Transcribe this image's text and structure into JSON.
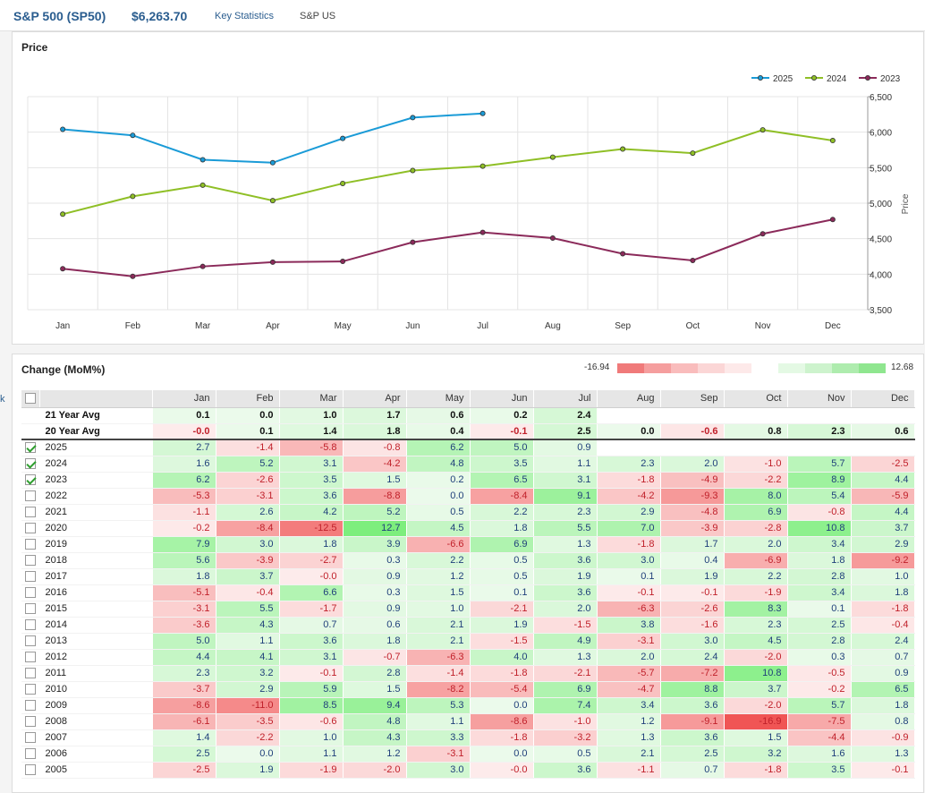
{
  "header": {
    "title": "S&P 500 (SP50)",
    "price": "$6,263.70",
    "tab_key_stats": "Key Statistics",
    "tab_sp_us": "S&P US"
  },
  "left_edge": "k",
  "price_panel": {
    "title": "Price"
  },
  "chart_data": {
    "type": "line",
    "categories": [
      "Jan",
      "Feb",
      "Mar",
      "Apr",
      "May",
      "Jun",
      "Jul",
      "Aug",
      "Sep",
      "Oct",
      "Nov",
      "Dec"
    ],
    "ylabel": "Price",
    "ylim": [
      3500,
      6500
    ],
    "yticks": [
      "3,500",
      "4,000",
      "4,500",
      "5,000",
      "5,500",
      "6,000",
      "6,500"
    ],
    "legend_position": "top-right",
    "series": [
      {
        "name": "2025",
        "color": "#1a9bd7",
        "values": [
          6040,
          5955,
          5612,
          5570,
          5912,
          6205,
          6264,
          null,
          null,
          null,
          null,
          null
        ]
      },
      {
        "name": "2024",
        "color": "#8fbf26",
        "values": [
          4845,
          5096,
          5254,
          5036,
          5278,
          5460,
          5522,
          5648,
          5762,
          5705,
          6032,
          5882
        ]
      },
      {
        "name": "2023",
        "color": "#8b2a5a",
        "values": [
          4077,
          3970,
          4109,
          4169,
          4180,
          4450,
          4589,
          4508,
          4288,
          4194,
          4568,
          4770
        ]
      }
    ]
  },
  "change_panel": {
    "title": "Change (MoM%)",
    "scale_min": "-16.94",
    "scale_max": "12.68",
    "months": [
      "Jan",
      "Feb",
      "Mar",
      "Apr",
      "May",
      "Jun",
      "Jul",
      "Aug",
      "Sep",
      "Oct",
      "Nov",
      "Dec"
    ],
    "avg_rows": [
      {
        "label": "21 Year Avg",
        "values": [
          "0.1",
          "0.0",
          "1.0",
          "1.7",
          "0.6",
          "0.2",
          "2.4",
          "",
          "",
          "",
          "",
          ""
        ]
      },
      {
        "label": "20 Year Avg",
        "values": [
          "-0.0",
          "0.1",
          "1.4",
          "1.8",
          "0.4",
          "-0.1",
          "2.5",
          "0.0",
          "-0.6",
          "0.8",
          "2.3",
          "0.6"
        ]
      }
    ],
    "rows": [
      {
        "year": "2025",
        "checked": true,
        "values": [
          "2.7",
          "-1.4",
          "-5.8",
          "-0.8",
          "6.2",
          "5.0",
          "0.9",
          "",
          "",
          "",
          "",
          ""
        ]
      },
      {
        "year": "2024",
        "checked": true,
        "values": [
          "1.6",
          "5.2",
          "3.1",
          "-4.2",
          "4.8",
          "3.5",
          "1.1",
          "2.3",
          "2.0",
          "-1.0",
          "5.7",
          "-2.5"
        ]
      },
      {
        "year": "2023",
        "checked": true,
        "values": [
          "6.2",
          "-2.6",
          "3.5",
          "1.5",
          "0.2",
          "6.5",
          "3.1",
          "-1.8",
          "-4.9",
          "-2.2",
          "8.9",
          "4.4"
        ]
      },
      {
        "year": "2022",
        "checked": false,
        "values": [
          "-5.3",
          "-3.1",
          "3.6",
          "-8.8",
          "0.0",
          "-8.4",
          "9.1",
          "-4.2",
          "-9.3",
          "8.0",
          "5.4",
          "-5.9"
        ]
      },
      {
        "year": "2021",
        "checked": false,
        "values": [
          "-1.1",
          "2.6",
          "4.2",
          "5.2",
          "0.5",
          "2.2",
          "2.3",
          "2.9",
          "-4.8",
          "6.9",
          "-0.8",
          "4.4"
        ]
      },
      {
        "year": "2020",
        "checked": false,
        "values": [
          "-0.2",
          "-8.4",
          "-12.5",
          "12.7",
          "4.5",
          "1.8",
          "5.5",
          "7.0",
          "-3.9",
          "-2.8",
          "10.8",
          "3.7"
        ]
      },
      {
        "year": "2019",
        "checked": false,
        "values": [
          "7.9",
          "3.0",
          "1.8",
          "3.9",
          "-6.6",
          "6.9",
          "1.3",
          "-1.8",
          "1.7",
          "2.0",
          "3.4",
          "2.9"
        ]
      },
      {
        "year": "2018",
        "checked": false,
        "values": [
          "5.6",
          "-3.9",
          "-2.7",
          "0.3",
          "2.2",
          "0.5",
          "3.6",
          "3.0",
          "0.4",
          "-6.9",
          "1.8",
          "-9.2"
        ]
      },
      {
        "year": "2017",
        "checked": false,
        "values": [
          "1.8",
          "3.7",
          "-0.0",
          "0.9",
          "1.2",
          "0.5",
          "1.9",
          "0.1",
          "1.9",
          "2.2",
          "2.8",
          "1.0"
        ]
      },
      {
        "year": "2016",
        "checked": false,
        "values": [
          "-5.1",
          "-0.4",
          "6.6",
          "0.3",
          "1.5",
          "0.1",
          "3.6",
          "-0.1",
          "-0.1",
          "-1.9",
          "3.4",
          "1.8"
        ]
      },
      {
        "year": "2015",
        "checked": false,
        "values": [
          "-3.1",
          "5.5",
          "-1.7",
          "0.9",
          "1.0",
          "-2.1",
          "2.0",
          "-6.3",
          "-2.6",
          "8.3",
          "0.1",
          "-1.8"
        ]
      },
      {
        "year": "2014",
        "checked": false,
        "values": [
          "-3.6",
          "4.3",
          "0.7",
          "0.6",
          "2.1",
          "1.9",
          "-1.5",
          "3.8",
          "-1.6",
          "2.3",
          "2.5",
          "-0.4"
        ]
      },
      {
        "year": "2013",
        "checked": false,
        "values": [
          "5.0",
          "1.1",
          "3.6",
          "1.8",
          "2.1",
          "-1.5",
          "4.9",
          "-3.1",
          "3.0",
          "4.5",
          "2.8",
          "2.4"
        ]
      },
      {
        "year": "2012",
        "checked": false,
        "values": [
          "4.4",
          "4.1",
          "3.1",
          "-0.7",
          "-6.3",
          "4.0",
          "1.3",
          "2.0",
          "2.4",
          "-2.0",
          "0.3",
          "0.7"
        ]
      },
      {
        "year": "2011",
        "checked": false,
        "values": [
          "2.3",
          "3.2",
          "-0.1",
          "2.8",
          "-1.4",
          "-1.8",
          "-2.1",
          "-5.7",
          "-7.2",
          "10.8",
          "-0.5",
          "0.9"
        ]
      },
      {
        "year": "2010",
        "checked": false,
        "values": [
          "-3.7",
          "2.9",
          "5.9",
          "1.5",
          "-8.2",
          "-5.4",
          "6.9",
          "-4.7",
          "8.8",
          "3.7",
          "-0.2",
          "6.5"
        ]
      },
      {
        "year": "2009",
        "checked": false,
        "values": [
          "-8.6",
          "-11.0",
          "8.5",
          "9.4",
          "5.3",
          "0.0",
          "7.4",
          "3.4",
          "3.6",
          "-2.0",
          "5.7",
          "1.8"
        ]
      },
      {
        "year": "2008",
        "checked": false,
        "values": [
          "-6.1",
          "-3.5",
          "-0.6",
          "4.8",
          "1.1",
          "-8.6",
          "-1.0",
          "1.2",
          "-9.1",
          "-16.9",
          "-7.5",
          "0.8"
        ]
      },
      {
        "year": "2007",
        "checked": false,
        "values": [
          "1.4",
          "-2.2",
          "1.0",
          "4.3",
          "3.3",
          "-1.8",
          "-3.2",
          "1.3",
          "3.6",
          "1.5",
          "-4.4",
          "-0.9"
        ]
      },
      {
        "year": "2006",
        "checked": false,
        "values": [
          "2.5",
          "0.0",
          "1.1",
          "1.2",
          "-3.1",
          "0.0",
          "0.5",
          "2.1",
          "2.5",
          "3.2",
          "1.6",
          "1.3"
        ]
      },
      {
        "year": "2005",
        "checked": false,
        "values": [
          "-2.5",
          "1.9",
          "-1.9",
          "-2.0",
          "3.0",
          "-0.0",
          "3.6",
          "-1.1",
          "0.7",
          "-1.8",
          "3.5",
          "-0.1"
        ]
      }
    ]
  }
}
